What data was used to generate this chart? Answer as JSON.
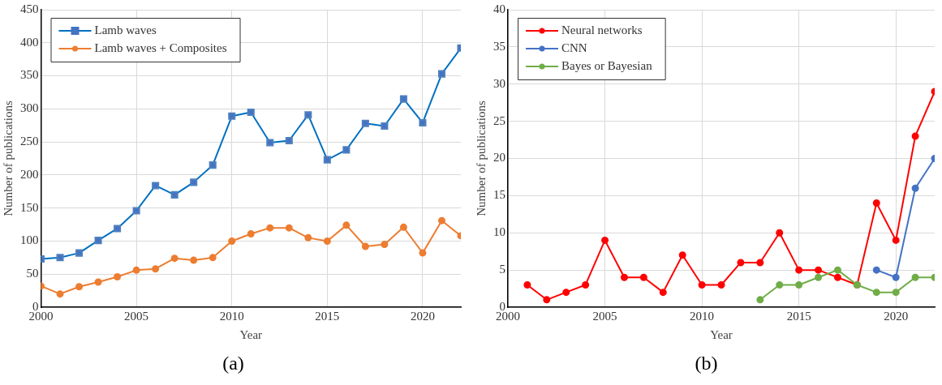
{
  "chart_data": [
    {
      "type": "line",
      "xlabel": "Year",
      "ylabel": "Number of publications",
      "annotations": [
        "(a)"
      ],
      "xlim": [
        2000,
        2022
      ],
      "xticks": [
        2000,
        2005,
        2010,
        2015,
        2020
      ],
      "ylim": [
        0,
        450
      ],
      "yticks": [
        0,
        50,
        100,
        150,
        200,
        250,
        300,
        350,
        400,
        450
      ],
      "grid": true,
      "legend": "top left",
      "line_style": "solid",
      "x": [
        2000,
        2001,
        2002,
        2003,
        2004,
        2005,
        2006,
        2007,
        2008,
        2009,
        2010,
        2011,
        2012,
        2013,
        2014,
        2015,
        2016,
        2017,
        2018,
        2019,
        2020,
        2021,
        2022
      ],
      "series": [
        {
          "name": "Lamb waves",
          "color": "#0070c0",
          "marker": "square",
          "values": [
            73,
            75,
            82,
            101,
            119,
            146,
            184,
            170,
            189,
            215,
            289,
            295,
            249,
            252,
            291,
            223,
            238,
            278,
            274,
            315,
            279,
            353,
            392
          ]
        },
        {
          "name": "Lamb waves + Composites",
          "color": "#ed7d31",
          "marker": "circle",
          "values": [
            32,
            20,
            31,
            38,
            46,
            56,
            58,
            74,
            71,
            75,
            100,
            111,
            120,
            120,
            105,
            100,
            124,
            92,
            95,
            121,
            82,
            131,
            108
          ]
        }
      ]
    },
    {
      "type": "line",
      "xlabel": "Year",
      "ylabel": "Number of publications",
      "annotations": [
        "(b)"
      ],
      "xlim": [
        2000,
        2022
      ],
      "xticks": [
        2000,
        2005,
        2010,
        2015,
        2020
      ],
      "ylim": [
        0,
        40
      ],
      "yticks": [
        0,
        5,
        10,
        15,
        20,
        25,
        30,
        35,
        40
      ],
      "grid": true,
      "legend": "top left",
      "line_style": "solid",
      "series": [
        {
          "name": "Neural networks",
          "color": "#ff0000",
          "marker": "circle",
          "x": [
            2001,
            2002,
            2003,
            2004,
            2005,
            2006,
            2007,
            2008,
            2009,
            2010,
            2011,
            2012,
            2013,
            2014,
            2015,
            2016,
            2017,
            2018,
            2019,
            2020,
            2021,
            2022
          ],
          "values": [
            3,
            1,
            2,
            3,
            9,
            4,
            4,
            2,
            7,
            3,
            3,
            6,
            6,
            10,
            5,
            5,
            4,
            3,
            14,
            9,
            23,
            29
          ]
        },
        {
          "name": "CNN",
          "color": "#4472c4",
          "marker": "circle",
          "x": [
            2019,
            2020,
            2021,
            2022
          ],
          "values": [
            5,
            4,
            16,
            20
          ]
        },
        {
          "name": "Bayes or Bayesian",
          "color": "#70ad47",
          "marker": "circle",
          "x": [
            2013,
            2014,
            2015,
            2016,
            2017,
            2018,
            2019,
            2020,
            2021,
            2022
          ],
          "values": [
            1,
            3,
            3,
            4,
            5,
            3,
            2,
            2,
            4,
            4
          ]
        }
      ]
    }
  ]
}
